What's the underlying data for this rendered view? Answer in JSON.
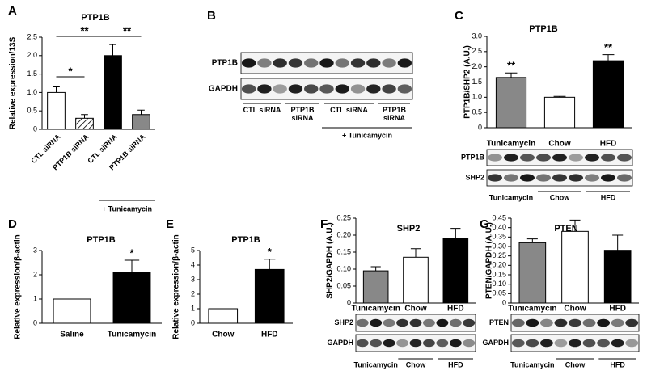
{
  "chart_data": [
    {
      "type": "bar",
      "panel": "A",
      "title": "PTP1B",
      "ylabel": "Relative expression/13S",
      "categories": [
        "CTL siRNA",
        "PTP1B siRNA",
        "CTL siRNA",
        "PTP1B siRNA"
      ],
      "values": [
        1.0,
        0.3,
        2.0,
        0.4
      ],
      "errors": [
        0.15,
        0.1,
        0.3,
        0.12
      ],
      "colors": [
        "#ffffff",
        "#ffffff",
        "#000000",
        "#888888"
      ],
      "hatch": [
        false,
        true,
        false,
        false
      ],
      "ylim": [
        0,
        2.5
      ],
      "yticks": [
        0,
        0.5,
        {
          "value": 1,
          "label": "1.0"
        },
        1.5,
        {
          "value": 2,
          "label": "2.0"
        },
        2.5
      ],
      "annotations": [
        "**",
        "*",
        "**"
      ],
      "group_label": "+ Tunicamycin"
    },
    {
      "type": "bar",
      "panel": "C",
      "title": "PTP1B",
      "ylabel": "PTP1B/SHP2 (A.U.)",
      "categories": [
        "Tunicamycin",
        "Chow",
        "HFD"
      ],
      "values": [
        1.65,
        1.0,
        2.2
      ],
      "errors": [
        0.15,
        0.03,
        0.2
      ],
      "colors": [
        "#888888",
        "#ffffff",
        "#000000"
      ],
      "ylim": [
        0,
        3
      ],
      "yticks": [
        0,
        0.5,
        {
          "value": 1,
          "label": "1.0"
        },
        1.5,
        {
          "value": 2,
          "label": "2.0"
        },
        2.5,
        {
          "value": 3,
          "label": "3.0"
        }
      ],
      "annotations": [
        "**",
        "**"
      ],
      "blot": {
        "rows": [
          "PTP1B",
          "SHP2"
        ],
        "lanes": [
          "Tunicamycin",
          "Chow",
          "HFD"
        ]
      }
    },
    {
      "type": "bar",
      "panel": "D",
      "title": "PTP1B",
      "ylabel": "Relative expression/β-actin",
      "categories": [
        "Saline",
        "Tunicamycin"
      ],
      "values": [
        1,
        2.1
      ],
      "errors": [
        0,
        0.5
      ],
      "colors": [
        "#ffffff",
        "#000000"
      ],
      "ylim": [
        0,
        3
      ],
      "yticks": [
        0,
        1,
        2,
        3
      ],
      "annotations": [
        "*"
      ]
    },
    {
      "type": "bar",
      "panel": "E",
      "title": "PTP1B",
      "ylabel": "Relative expression/β-actin",
      "categories": [
        "Chow",
        "HFD"
      ],
      "values": [
        1,
        3.7
      ],
      "errors": [
        0,
        0.7
      ],
      "colors": [
        "#ffffff",
        "#000000"
      ],
      "ylim": [
        0,
        5
      ],
      "yticks": [
        0,
        1,
        2,
        3,
        4,
        5
      ],
      "annotations": [
        "*"
      ]
    },
    {
      "type": "bar",
      "panel": "F",
      "title": "SHP2",
      "ylabel": "SHP2/GAPDH (A.U.)",
      "categories": [
        "Tunicamycin",
        "Chow",
        "HFD"
      ],
      "values": [
        0.095,
        0.135,
        0.19
      ],
      "errors": [
        0.012,
        0.025,
        0.03
      ],
      "colors": [
        "#888888",
        "#ffffff",
        "#000000"
      ],
      "ylim": [
        0,
        0.25
      ],
      "yticks": [
        0,
        0.05,
        {
          "value": 0.1,
          "label": "0.10"
        },
        0.15,
        {
          "value": 0.2,
          "label": "0.20"
        },
        0.25
      ],
      "blot": {
        "rows": [
          "SHP2",
          "GAPDH"
        ],
        "lanes": [
          "Tunicamycin",
          "Chow",
          "HFD"
        ]
      }
    },
    {
      "type": "bar",
      "panel": "G",
      "title": "PTEN",
      "ylabel": "PTEN/GAPDH (A.U.)",
      "categories": [
        "Tunicamycin",
        "Chow",
        "HFD"
      ],
      "values": [
        0.32,
        0.38,
        0.28
      ],
      "errors": [
        0.02,
        0.06,
        0.08
      ],
      "colors": [
        "#888888",
        "#ffffff",
        "#000000"
      ],
      "ylim": [
        0,
        0.45
      ],
      "yticks": [
        0,
        0.05,
        {
          "value": 0.1,
          "label": "0.10"
        },
        0.15,
        {
          "value": 0.2,
          "label": "0.20"
        },
        0.25,
        {
          "value": 0.3,
          "label": "0.30"
        },
        0.35,
        {
          "value": 0.4,
          "label": "0.40"
        },
        0.45
      ],
      "blot": {
        "rows": [
          "PTEN",
          "GAPDH"
        ],
        "lanes": [
          "Tunicamycin",
          "Chow",
          "HFD"
        ]
      }
    }
  ],
  "figure_b": {
    "panel": "B",
    "rows": [
      "PTP1B",
      "GAPDH"
    ],
    "lanes": [
      "CTL siRNA",
      "PTP1B siRNA",
      "CTL siRNA",
      "PTP1B siRNA"
    ],
    "group_label": "+ Tunicamycin"
  }
}
